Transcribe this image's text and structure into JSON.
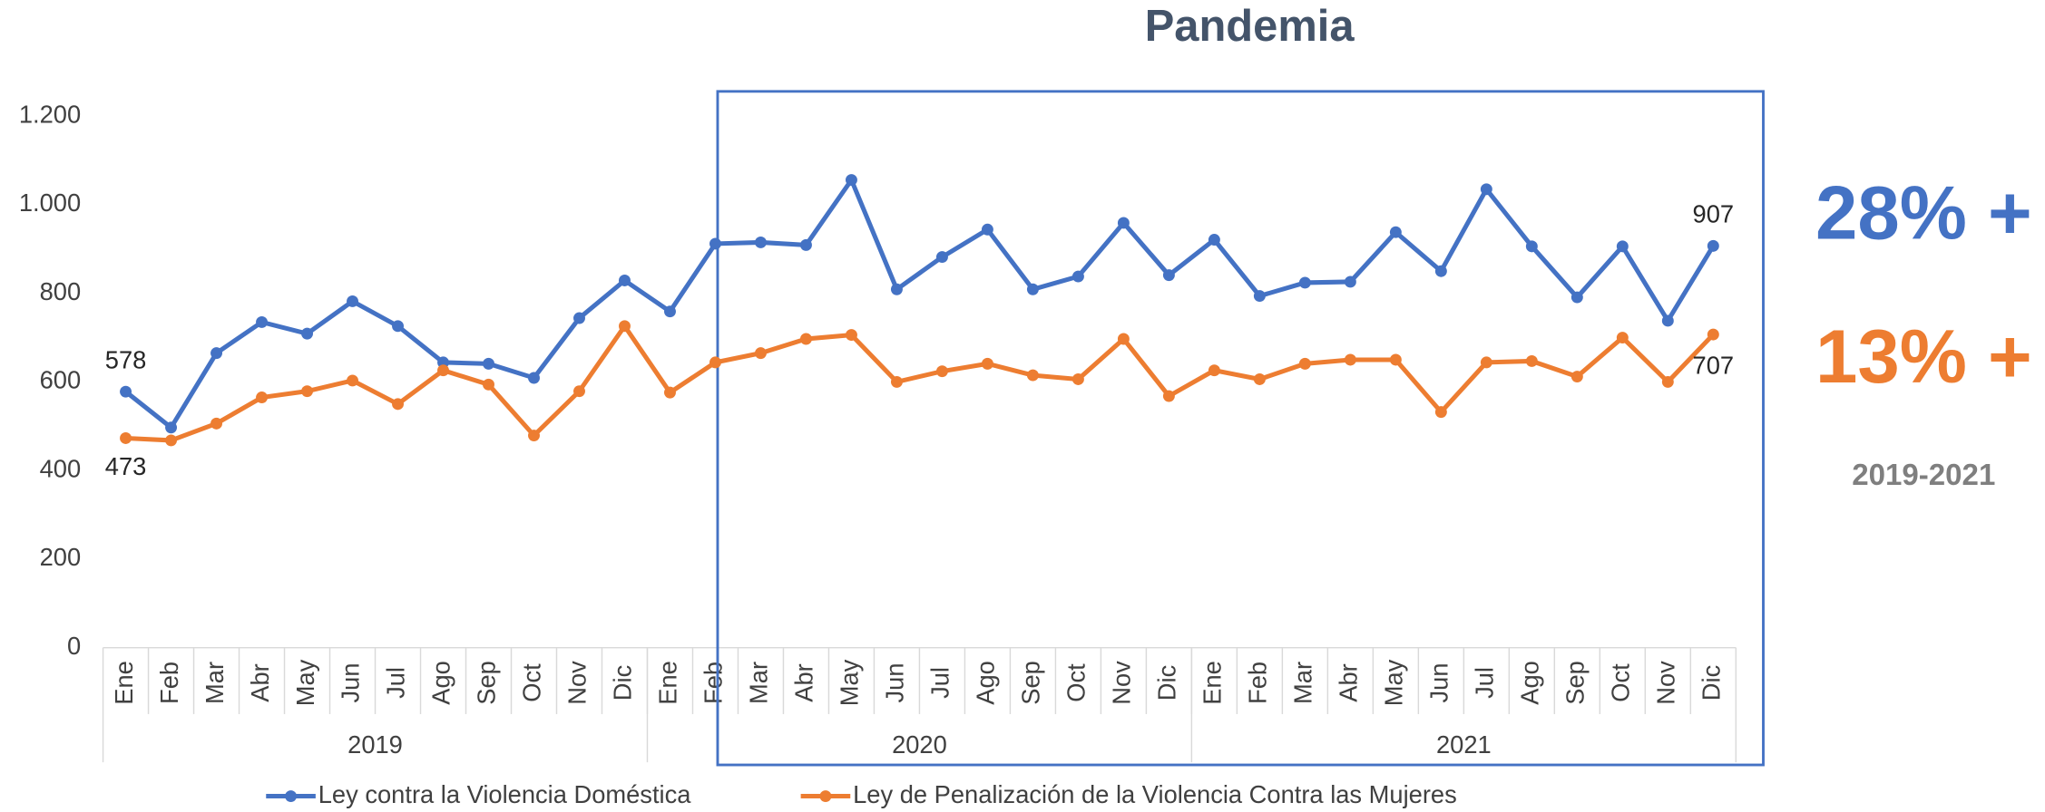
{
  "chart_data": {
    "type": "line",
    "categories": [
      "Ene",
      "Feb",
      "Mar",
      "Abr",
      "May",
      "Jun",
      "Jul",
      "Ago",
      "Sep",
      "Oct",
      "Nov",
      "Dic",
      "Ene",
      "Feb",
      "Mar",
      "Abr",
      "May",
      "Jun",
      "Jul",
      "Ago",
      "Sep",
      "Oct",
      "Nov",
      "Dic",
      "Ene",
      "Feb",
      "Mar",
      "Abr",
      "May",
      "Jun",
      "Jul",
      "Ago",
      "Sep",
      "Oct",
      "Nov",
      "Dic"
    ],
    "groups": [
      {
        "label": "2019",
        "count": 12
      },
      {
        "label": "2020",
        "count": 12
      },
      {
        "label": "2021",
        "count": 12
      }
    ],
    "series": [
      {
        "name": "Ley contra la Violencia Doméstica",
        "color": "#4472c4",
        "values": [
          578,
          497,
          665,
          735,
          709,
          782,
          726,
          644,
          641,
          609,
          744,
          829,
          759,
          912,
          915,
          909,
          1056,
          809,
          882,
          944,
          809,
          838,
          959,
          841,
          921,
          794,
          824,
          826,
          938,
          850,
          1035,
          906,
          791,
          906,
          738,
          907
        ]
      },
      {
        "name": "Ley de Penalización de la Violencia Contra las Mujeres",
        "color": "#ed7d31",
        "values": [
          473,
          468,
          506,
          565,
          579,
          603,
          550,
          626,
          594,
          479,
          579,
          726,
          576,
          644,
          665,
          697,
          706,
          600,
          624,
          641,
          615,
          606,
          697,
          568,
          626,
          606,
          641,
          650,
          650,
          532,
          644,
          647,
          612,
          700,
          600,
          707
        ]
      }
    ],
    "labeled_points": [
      0,
      35
    ],
    "ylim": [
      0,
      1200
    ],
    "yticks": [
      0,
      200,
      400,
      600,
      800,
      {
        "value": 1000,
        "label": "1.000"
      },
      {
        "value": 1200,
        "label": "1.200"
      }
    ],
    "grid": false,
    "legend": "bottom",
    "highlight": {
      "label": "Pandemia",
      "from": 14,
      "color": "#4472c4"
    },
    "annotations": [
      {
        "text": "28% +",
        "color": "#4472c4"
      },
      {
        "text": "13% +",
        "color": "#ed7d31"
      },
      {
        "text": "2019-2021",
        "color": "#7f7f7f"
      }
    ]
  }
}
